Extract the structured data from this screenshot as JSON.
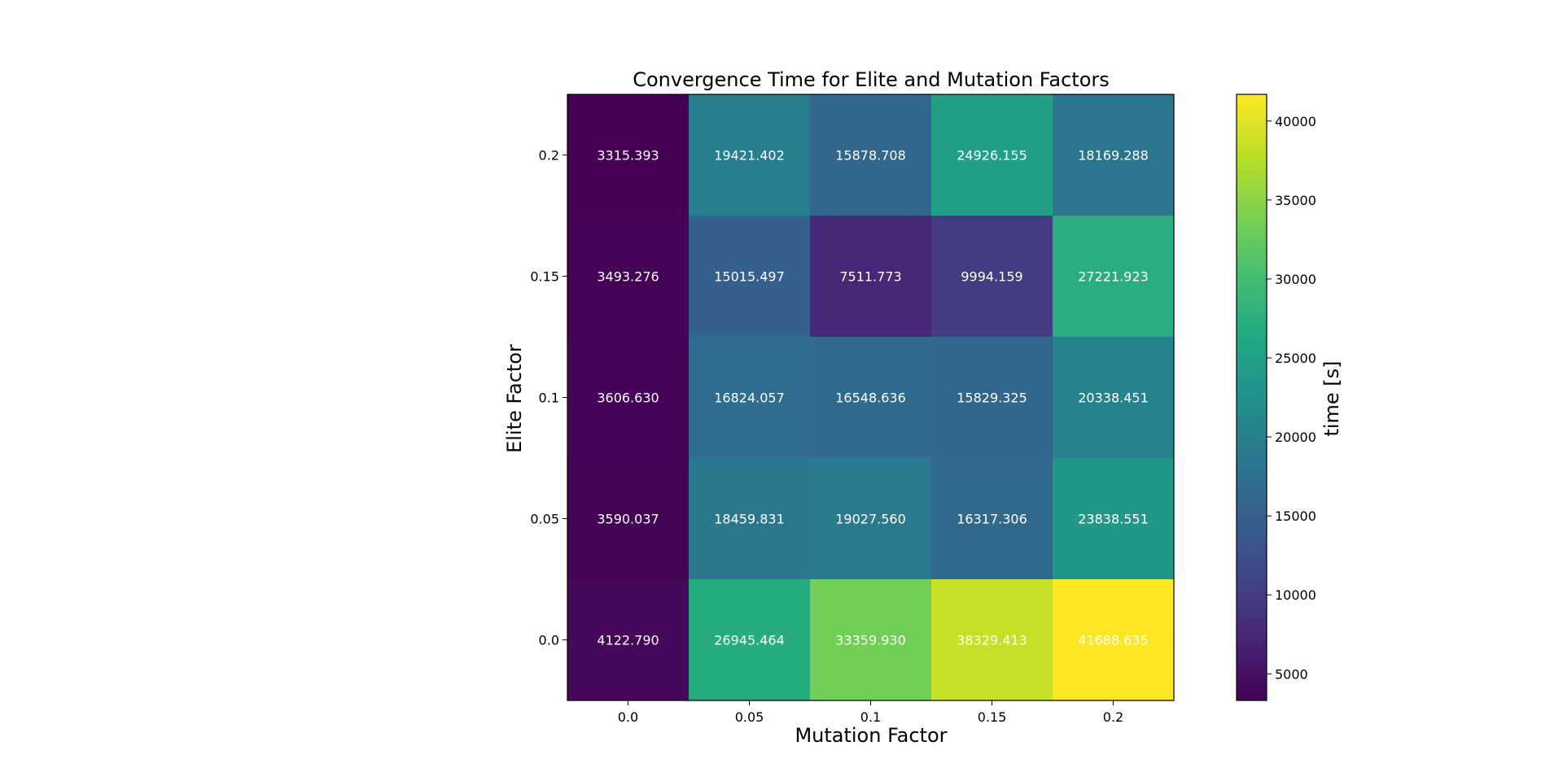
{
  "chart_data": {
    "type": "heatmap",
    "title": "Convergence Time for Elite and Mutation Factors",
    "xlabel": "Mutation Factor",
    "ylabel": "Elite Factor",
    "x_categories": [
      "0.0",
      "0.05",
      "0.1",
      "0.15",
      "0.2"
    ],
    "y_categories": [
      "0.2",
      "0.15",
      "0.1",
      "0.05",
      "0.0"
    ],
    "values": [
      [
        3315.393,
        19421.402,
        15878.708,
        24926.155,
        18169.288
      ],
      [
        3493.276,
        15015.497,
        7511.773,
        9994.159,
        27221.923
      ],
      [
        3606.63,
        16824.057,
        16548.636,
        15829.325,
        20338.451
      ],
      [
        3590.037,
        18459.831,
        19027.56,
        16317.306,
        23838.551
      ],
      [
        4122.79,
        26945.464,
        33359.93,
        38329.413,
        41688.635
      ]
    ],
    "cell_labels": [
      [
        "3315.393",
        "19421.402",
        "15878.708",
        "24926.155",
        "18169.288"
      ],
      [
        "3493.276",
        "15015.497",
        "7511.773",
        "9994.159",
        "27221.923"
      ],
      [
        "3606.630",
        "16824.057",
        "16548.636",
        "15829.325",
        "20338.451"
      ],
      [
        "3590.037",
        "18459.831",
        "19027.560",
        "16317.306",
        "23838.551"
      ],
      [
        "4122.790",
        "26945.464",
        "33359.930",
        "38329.413",
        "41688.635"
      ]
    ],
    "colormap": "viridis",
    "colorbar": {
      "label": "time [s]",
      "range": [
        3315.393,
        41688.635
      ],
      "ticks": [
        5000,
        10000,
        15000,
        20000,
        25000,
        30000,
        35000,
        40000
      ]
    }
  }
}
